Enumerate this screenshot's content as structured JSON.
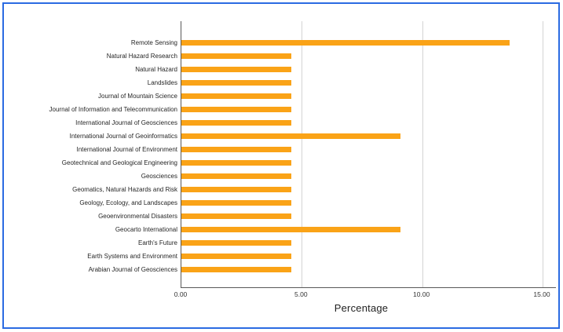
{
  "figure": {
    "background": "#FFFFFF",
    "border_color": "#2B6BE2"
  },
  "chart_data": {
    "type": "bar",
    "orientation": "horizontal",
    "title": "",
    "xlabel": "Percentage",
    "ylabel": "",
    "bar_color": "#FAA317",
    "grid": "vertical-only",
    "legend": "none",
    "xlim": [
      0,
      15.5
    ],
    "xticks": [
      {
        "value": 0,
        "label": "0.00"
      },
      {
        "value": 5,
        "label": "5.00"
      },
      {
        "value": 10,
        "label": "10.00"
      },
      {
        "value": 15,
        "label": "15.00"
      }
    ],
    "categories": [
      "Remote Sensing",
      "Natural Hazard Research",
      "Natural Hazard",
      "Landslides",
      "Journal of Mountain Science",
      "Journal of Information and Telecommunication",
      "International Journal of Geosciences",
      "International Journal of Geoinformatics",
      "International Journal of Environment",
      "Geotechnical and Geological Engineering",
      "Geosciences",
      "Geomatics, Natural Hazards and Risk",
      "Geology, Ecology, and Landscapes",
      "Geoenvironmental Disasters",
      "Geocarto International",
      "Earth's Future",
      "Earth Systems and Environment",
      "Arabian Journal of Geosciences"
    ],
    "values": [
      13.64,
      4.55,
      4.55,
      4.55,
      4.55,
      4.55,
      4.55,
      9.09,
      4.55,
      4.55,
      4.55,
      4.55,
      4.55,
      4.55,
      9.09,
      4.55,
      4.55,
      4.55
    ]
  }
}
